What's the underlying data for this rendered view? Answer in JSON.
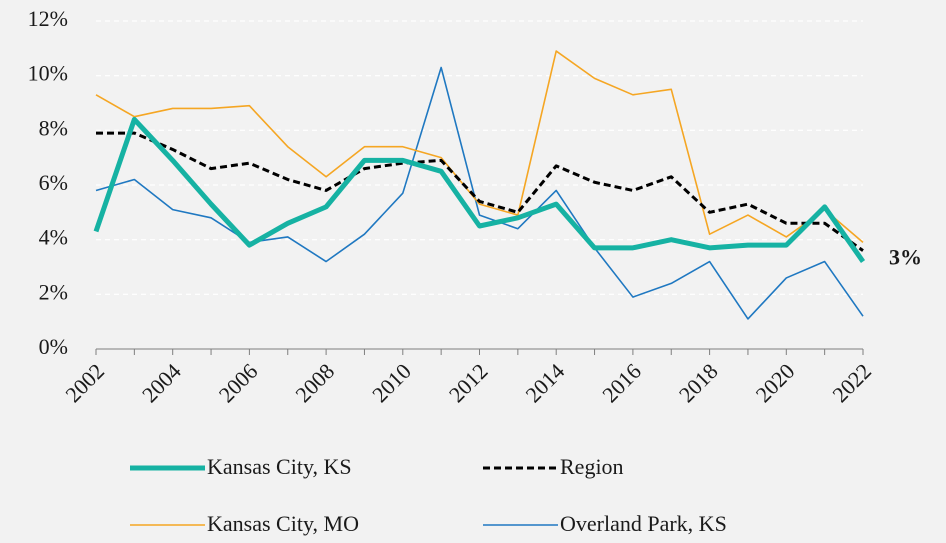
{
  "chart_data": {
    "type": "line",
    "x": [
      2002,
      2003,
      2004,
      2005,
      2006,
      2007,
      2008,
      2009,
      2010,
      2011,
      2012,
      2013,
      2014,
      2015,
      2016,
      2017,
      2018,
      2019,
      2020,
      2021,
      2022
    ],
    "series": [
      {
        "name": "Kansas City, KS",
        "color": "#16b2a3",
        "line_width": 5,
        "line_style": "solid",
        "values": [
          4.3,
          8.4,
          6.9,
          5.3,
          3.8,
          4.6,
          5.2,
          6.9,
          6.9,
          6.5,
          4.5,
          4.8,
          5.3,
          3.7,
          3.7,
          4.0,
          3.7,
          3.8,
          3.8,
          5.2,
          3.2
        ]
      },
      {
        "name": "Region",
        "color": "#000000",
        "line_width": 3,
        "line_style": "dashed",
        "values": [
          7.9,
          7.9,
          7.3,
          6.6,
          6.8,
          6.2,
          5.8,
          6.6,
          6.8,
          6.9,
          5.4,
          5.0,
          6.7,
          6.1,
          5.8,
          6.3,
          5.0,
          5.3,
          4.6,
          4.6,
          3.6
        ]
      },
      {
        "name": "Kansas City, MO",
        "color": "#f5a623",
        "line_width": 1.6,
        "line_style": "solid",
        "values": [
          9.3,
          8.5,
          8.8,
          8.8,
          8.9,
          7.4,
          6.3,
          7.4,
          7.4,
          7.0,
          5.3,
          4.9,
          10.9,
          9.9,
          9.3,
          9.5,
          4.2,
          4.9,
          4.1,
          5.1,
          3.9
        ]
      },
      {
        "name": "Overland Park, KS",
        "color": "#1f78c1",
        "line_width": 1.6,
        "line_style": "solid",
        "values": [
          5.8,
          6.2,
          5.1,
          4.8,
          3.9,
          4.1,
          3.2,
          4.2,
          5.7,
          10.3,
          4.9,
          4.4,
          5.8,
          3.7,
          1.9,
          2.4,
          3.2,
          1.1,
          2.6,
          3.2,
          1.2
        ]
      }
    ],
    "xlim": [
      2002,
      2022
    ],
    "xticks": [
      2002,
      2004,
      2006,
      2008,
      2010,
      2012,
      2014,
      2016,
      2018,
      2020,
      2022
    ],
    "ylim": [
      0,
      12
    ],
    "yticks": [
      {
        "value": 0,
        "label": "0%"
      },
      {
        "value": 2,
        "label": "2%"
      },
      {
        "value": 4,
        "label": "4%"
      },
      {
        "value": 6,
        "label": "6%"
      },
      {
        "value": 8,
        "label": "8%"
      },
      {
        "value": 10,
        "label": "10%"
      },
      {
        "value": 12,
        "label": "12%"
      }
    ],
    "grid": true,
    "legend": "bottom",
    "annotation": "3%"
  }
}
